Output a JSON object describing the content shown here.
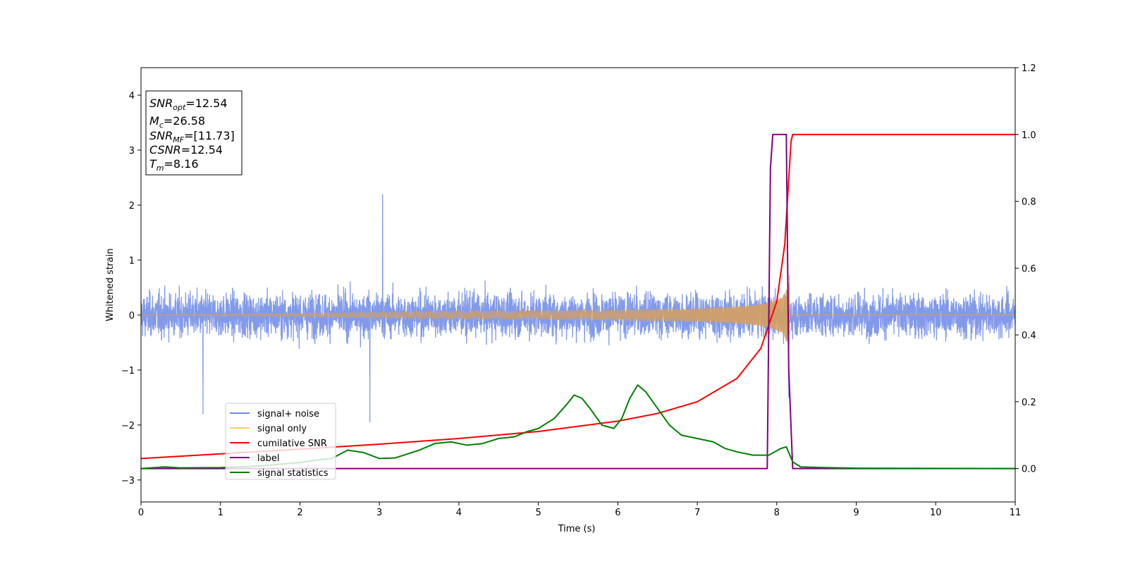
{
  "chart_data": {
    "type": "line",
    "xlabel": "Time (s)",
    "ylabel": "Whitened strain",
    "xlim": [
      0,
      11
    ],
    "ylim_left": [
      -3.4,
      4.5
    ],
    "ylim_right": [
      -0.1,
      1.2
    ],
    "x_ticks": [
      "0",
      "1",
      "2",
      "3",
      "4",
      "5",
      "6",
      "7",
      "8",
      "9",
      "10",
      "11"
    ],
    "y_ticks_left": [
      "−3",
      "−2",
      "−1",
      "0",
      "1",
      "2",
      "3",
      "4"
    ],
    "y_ticks_right": [
      "0.0",
      "0.2",
      "0.4",
      "0.6",
      "0.8",
      "1.0",
      "1.2"
    ],
    "grid": false,
    "legend_position": "lower-left",
    "legend": [
      {
        "label": "signal+ noise",
        "color": "#7b95e8"
      },
      {
        "label": "signal only",
        "color": "#ffcc77"
      },
      {
        "label": "cumilative SNR",
        "color": "#ff0000"
      },
      {
        "label": "label",
        "color": "#800080"
      },
      {
        "label": "signal statistics",
        "color": "#008000"
      }
    ],
    "annotation": [
      {
        "name": "SNR",
        "sub": "opt",
        "value": "=12.54"
      },
      {
        "name": "M",
        "sub": "c",
        "value": "=26.58"
      },
      {
        "name": "SNR",
        "sub": "MF",
        "value": "=[11.73]"
      },
      {
        "name": "CSNR",
        "sub": "",
        "value": "=12.54"
      },
      {
        "name": "T",
        "sub": "m",
        "value": "=8.16"
      }
    ],
    "series": [
      {
        "name": "signal+ noise",
        "axis": "left",
        "description": "whitened noise, roughly ±1 with spikes to ±1.6, max 2.2 near t=3.04",
        "x_range": [
          0,
          11
        ],
        "envelope": 1.0,
        "spikes": [
          [
            3.04,
            2.2
          ],
          [
            2.88,
            -1.95
          ],
          [
            0.78,
            -1.8
          ],
          [
            8.15,
            -1.5
          ]
        ]
      },
      {
        "name": "signal only",
        "axis": "left",
        "description": "chirp growing until merger",
        "merger_time": 8.16,
        "peak_amplitude": 0.75
      },
      {
        "name": "cumilative SNR",
        "axis": "right",
        "x": [
          0,
          1,
          2,
          3,
          4,
          5,
          6,
          6.5,
          7,
          7.5,
          7.8,
          8.0,
          8.1,
          8.18,
          8.2,
          11
        ],
        "values": [
          0.03,
          0.044,
          0.058,
          0.073,
          0.09,
          0.111,
          0.142,
          0.165,
          0.2,
          0.27,
          0.36,
          0.5,
          0.67,
          0.98,
          1.0,
          1.0
        ]
      },
      {
        "name": "label",
        "axis": "right",
        "x": [
          0,
          7.88,
          7.92,
          7.95,
          8.12,
          8.15,
          8.2,
          11
        ],
        "values": [
          0,
          0,
          0.9,
          1.0,
          1.0,
          0.3,
          0,
          0
        ]
      },
      {
        "name": "signal statistics",
        "axis": "right",
        "x": [
          0,
          0.3,
          0.5,
          1.0,
          1.5,
          2.0,
          2.2,
          2.4,
          2.6,
          2.8,
          3.0,
          3.2,
          3.5,
          3.7,
          3.9,
          4.1,
          4.3,
          4.5,
          4.7,
          4.85,
          5.0,
          5.2,
          5.35,
          5.45,
          5.55,
          5.65,
          5.8,
          5.95,
          6.05,
          6.15,
          6.25,
          6.35,
          6.5,
          6.65,
          6.8,
          7.0,
          7.2,
          7.35,
          7.5,
          7.7,
          7.9,
          8.05,
          8.12,
          8.2,
          8.3,
          8.6,
          9.0,
          11
        ],
        "values": [
          0.0,
          0.005,
          0.002,
          0.003,
          0.008,
          0.018,
          0.025,
          0.03,
          0.055,
          0.048,
          0.03,
          0.032,
          0.055,
          0.075,
          0.08,
          0.07,
          0.075,
          0.09,
          0.095,
          0.11,
          0.12,
          0.15,
          0.19,
          0.22,
          0.21,
          0.18,
          0.13,
          0.12,
          0.15,
          0.21,
          0.25,
          0.23,
          0.18,
          0.13,
          0.1,
          0.09,
          0.08,
          0.06,
          0.05,
          0.04,
          0.04,
          0.06,
          0.065,
          0.02,
          0.005,
          0.003,
          0.001,
          0.0
        ]
      }
    ]
  }
}
